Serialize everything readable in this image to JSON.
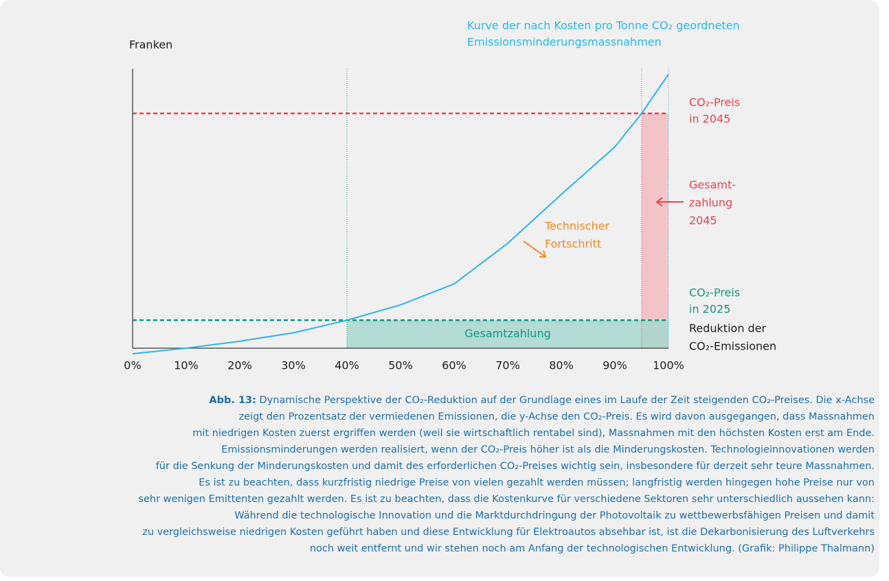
{
  "chart_data": {
    "type": "line",
    "y_label": "Franken",
    "x_label": [
      "Reduktion der",
      "CO₂-Emissionen"
    ],
    "curve_label": [
      "Kurve der nach Kosten pro Tonne CO₂ geordneten",
      "Emissionsminderungsmassnahmen"
    ],
    "x": [
      0,
      10,
      20,
      30,
      40,
      50,
      60,
      70,
      80,
      90,
      95,
      100
    ],
    "values": [
      -2,
      0,
      2.5,
      5.5,
      10,
      15.5,
      23,
      37.5,
      55,
      72,
      84,
      98
    ],
    "color": "#2cb5e8",
    "xlim": [
      0,
      100
    ],
    "ylim": [
      0,
      100
    ],
    "xticks": [
      {
        "value": 0,
        "label": "0%"
      },
      {
        "value": 10,
        "label": "10%"
      },
      {
        "value": 20,
        "label": "20%"
      },
      {
        "value": 30,
        "label": "30%"
      },
      {
        "value": 40,
        "label": "40%"
      },
      {
        "value": 50,
        "label": "50%"
      },
      {
        "value": 60,
        "label": "60%"
      },
      {
        "value": 70,
        "label": "70%"
      },
      {
        "value": 80,
        "label": "80%"
      },
      {
        "value": 90,
        "label": "90%"
      },
      {
        "value": 100,
        "label": "100%"
      }
    ],
    "price_lines": [
      {
        "label": [
          "CO₂-Preis",
          "in 2045"
        ],
        "value": 84,
        "from": 95,
        "color": "#e8434c",
        "fill": "#f2bcc1"
      },
      {
        "label": [
          "CO₂-Preis",
          "in 2025"
        ],
        "value": 10,
        "from": 40,
        "color": "#13977f",
        "fill": "#a8d8cf",
        "area_label": "Gesamtzahlung"
      }
    ],
    "total_2045": [
      "Gesamt-",
      "zahlung",
      "2045"
    ],
    "progress": [
      "Technischer",
      "Fortschritt"
    ],
    "progress_color": "#f08a24"
  },
  "caption": {
    "label": "Abb. 13:",
    "lines": [
      " Dynamische Perspektive der CO₂-Reduktion auf der Grundlage eines im Laufe der Zeit steigenden CO₂-Preises. Die x-Achse",
      "zeigt den Prozentsatz der vermiedenen Emissionen, die y-Achse den CO₂-Preis. Es wird davon ausgegangen, dass Massnahmen",
      "mit niedrigen Kosten zuerst ergriffen werden (weil sie wirtschaftlich rentabel sind), Massnahmen mit den höchsten Kosten erst am Ende.",
      "Emissionsminderungen werden realisiert, wenn der CO₂-Preis höher ist als die Minderungskosten. Technologieinnovationen werden",
      "für die Senkung der Minderungskosten und damit des erforderlichen CO₂-Preises wichtig sein, insbesondere für derzeit sehr teure Massnahmen.",
      "Es ist zu beachten, dass kurzfristig niedrige Preise von vielen gezahlt werden müssen; langfristig werden hingegen hohe Preise nur von",
      "sehr wenigen Emittenten gezahlt werden. Es ist zu beachten, dass die Kostenkurve für verschiedene Sektoren sehr unterschiedlich aussehen kann:",
      "Während die technologische Innovation und die Marktdurchdringung der Photovoltaik zu wettbewerbsfähigen Preisen und damit",
      "zu vergleichsweise niedrigen Kosten geführt haben und diese Entwicklung für Elektroautos absehbar ist, ist die Dekarbonisierung des Luftverkehrs",
      "noch weit entfernt und wir stehen noch am Anfang der technologischen Entwicklung. (Grafik: Philippe Thalmann)"
    ]
  }
}
